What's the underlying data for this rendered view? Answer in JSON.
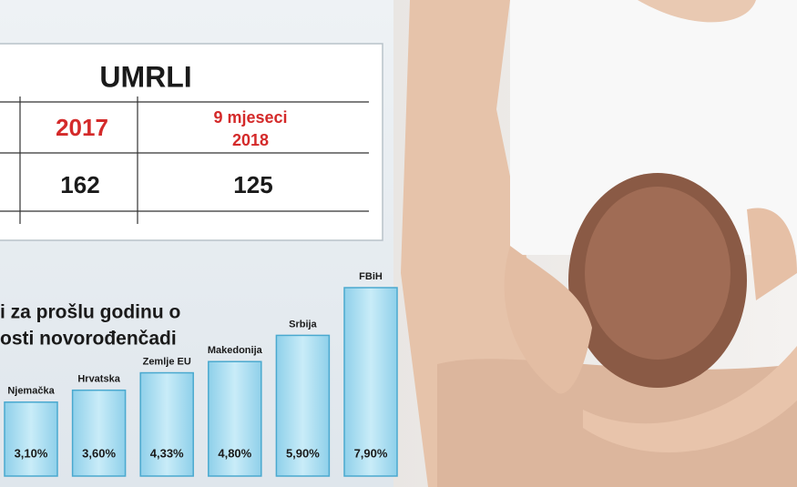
{
  "table": {
    "title": "UMRLI",
    "header": [
      "2017",
      "9 mjeseci",
      "2018"
    ],
    "row": [
      "162",
      "125"
    ]
  },
  "chart_data": {
    "type": "bar",
    "title_lines": [
      "i za prošlu godinu o",
      "osti novorođenčadi"
    ],
    "categories": [
      "Njemačka",
      "Hrvatska",
      "Zemlje EU",
      "Makedonija",
      "Srbija",
      "FBiH"
    ],
    "values": [
      3.1,
      3.6,
      4.33,
      4.8,
      5.9,
      7.9
    ],
    "value_labels": [
      "3,10%",
      "3,60%",
      "4,33%",
      "4,80%",
      "5,90%",
      "7,90%"
    ],
    "color": "#a9ddf0"
  }
}
